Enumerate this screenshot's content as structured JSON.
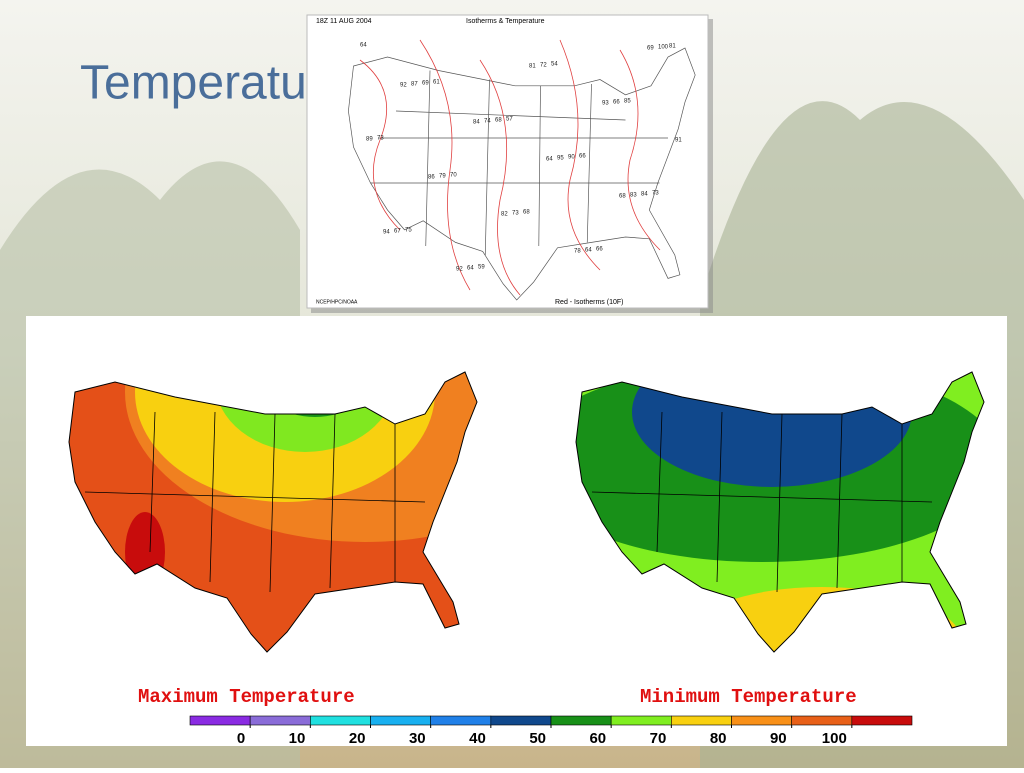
{
  "slide": {
    "title": "Temperature"
  },
  "isotherm_map": {
    "timestamp": "18Z  11 AUG 2004",
    "title": "Isotherms & Temperature",
    "credit": "NCEP/HPC/NOAA",
    "note": "Red - Isotherms (10F)",
    "station_values": [
      64,
      61,
      57,
      66,
      73,
      75,
      59,
      54,
      85,
      73,
      70,
      68,
      66,
      81,
      69,
      68,
      90,
      84,
      67,
      64,
      72,
      66,
      89,
      79,
      73,
      64,
      100,
      87,
      74,
      95,
      83,
      94,
      92,
      81,
      93,
      91,
      86,
      82,
      78,
      69,
      92,
      84,
      64,
      68
    ]
  },
  "temperature_maps": {
    "max_title": "Maximum Temperature",
    "min_title": "Minimum Temperature"
  },
  "legend": {
    "range": [
      -10,
      110
    ],
    "ticks": [
      0,
      10,
      20,
      30,
      40,
      50,
      60,
      70,
      80,
      90,
      100
    ],
    "colors": [
      "#8a2be2",
      "#8a6cd8",
      "#20e0e0",
      "#18b0f0",
      "#2080e8",
      "#10488c",
      "#189018",
      "#80ee20",
      "#f8d010",
      "#f89018",
      "#e86018",
      "#c80c0c"
    ]
  }
}
